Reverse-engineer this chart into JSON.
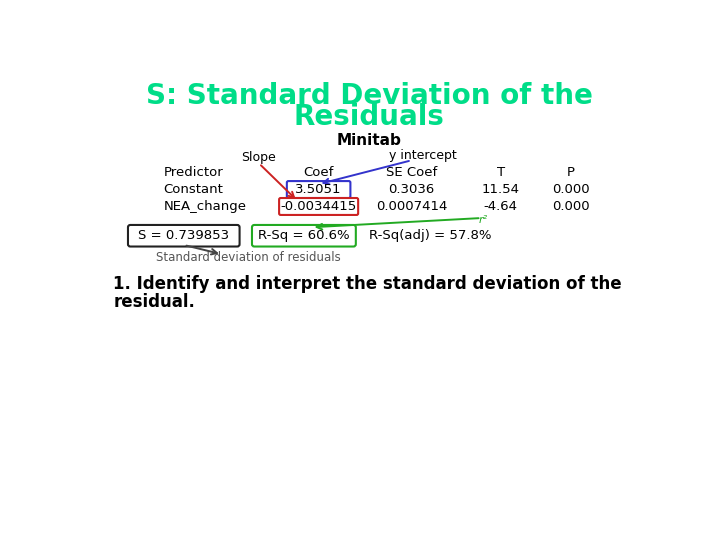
{
  "title_line1": "S: Standard Deviation of the",
  "title_line2": "Residuals",
  "title_color": "#00dd88",
  "background_color": "#ffffff",
  "minitab_label": "Minitab",
  "slope_label": "Slope",
  "y_intercept_label": "y intercept",
  "r2_label": "r²",
  "s_box": "S = 0.739853",
  "rsq_box": "R-Sq = 60.6%",
  "rsqadj": "R-Sq(adj) = 57.8%",
  "std_dev_label": "Standard deviation of residuals",
  "bottom_text_line1": "1. Identify and interpret the standard deviation of the",
  "bottom_text_line2": "residual.",
  "constant_box_color": "#3333cc",
  "nea_box_color": "#cc2222",
  "s_box_color": "#222222",
  "rsq_box_color": "#22aa22",
  "arrow_slope_color": "#cc2222",
  "arrow_yintercept_color": "#3333cc",
  "arrow_r2_color": "#22aa22",
  "arrow_stddev_color": "#444444"
}
